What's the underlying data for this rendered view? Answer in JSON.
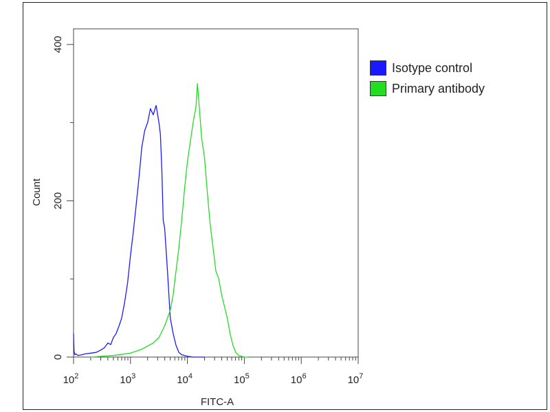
{
  "chart_data": {
    "type": "line",
    "title": "",
    "xlabel": "FITC-A",
    "ylabel": "Count",
    "x_scale": "log",
    "xlim": [
      100,
      10000000
    ],
    "ylim": [
      0,
      420
    ],
    "x_ticks": [
      {
        "base": "10",
        "exp": "2"
      },
      {
        "base": "10",
        "exp": "3"
      },
      {
        "base": "10",
        "exp": "4"
      },
      {
        "base": "10",
        "exp": "5"
      },
      {
        "base": "10",
        "exp": "6"
      },
      {
        "base": "10",
        "exp": "7"
      }
    ],
    "y_ticks": [
      "0",
      "200",
      "400"
    ],
    "legend_position": "top-right (outside plot)",
    "series": [
      {
        "name": "Isotype control",
        "color": "#1a1aff",
        "x": [
          100,
          102,
          105,
          110,
          120,
          140,
          160,
          200,
          250,
          300,
          350,
          400,
          450,
          500,
          560,
          630,
          700,
          790,
          890,
          1000,
          1120,
          1260,
          1410,
          1580,
          1780,
          2000,
          2240,
          2510,
          2820,
          3160,
          3350,
          3550,
          3760,
          3980,
          4470,
          5010,
          5620,
          6310,
          7080,
          7940,
          8910,
          10000,
          12600,
          15800,
          20000
        ],
        "y": [
          30,
          8,
          3,
          4,
          2,
          3,
          4,
          5,
          6,
          9,
          12,
          18,
          16,
          25,
          30,
          40,
          50,
          70,
          95,
          130,
          160,
          195,
          230,
          268,
          290,
          300,
          318,
          310,
          322,
          300,
          285,
          240,
          175,
          165,
          110,
          50,
          30,
          15,
          6,
          3,
          2,
          1,
          0,
          0,
          0
        ]
      },
      {
        "name": "Primary antibody",
        "color": "#22dd22",
        "x": [
          200,
          500,
          1000,
          1580,
          2510,
          3160,
          3980,
          5010,
          5620,
          6310,
          7080,
          7940,
          8910,
          10000,
          11200,
          12600,
          14100,
          15000,
          15800,
          17800,
          20000,
          22400,
          25100,
          28200,
          31600,
          35500,
          39800,
          44700,
          50100,
          56200,
          63100,
          70800,
          79400,
          100000,
          120000
        ],
        "y": [
          0,
          2,
          5,
          10,
          18,
          25,
          40,
          60,
          80,
          110,
          140,
          175,
          215,
          250,
          275,
          300,
          320,
          350,
          330,
          280,
          255,
          210,
          170,
          140,
          110,
          100,
          80,
          65,
          50,
          30,
          15,
          6,
          2,
          0,
          0
        ]
      }
    ]
  }
}
